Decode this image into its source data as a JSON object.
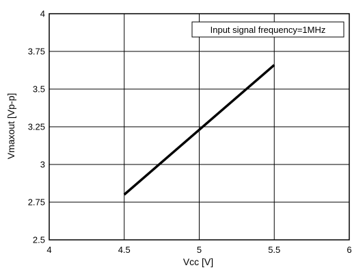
{
  "chart_data": {
    "type": "line",
    "title": "",
    "xlabel": "Vcc [V]",
    "ylabel": "Vmaxout [Vp-p]",
    "xlim": [
      4,
      6
    ],
    "ylim": [
      2.5,
      4
    ],
    "x_ticks": [
      "4",
      "4.5",
      "5",
      "5.5",
      "6"
    ],
    "y_ticks": [
      "2.5",
      "2.75",
      "3",
      "3.25",
      "3.5",
      "3.75",
      "4"
    ],
    "grid": true,
    "annotation": "Input signal frequency=1MHz",
    "series": [
      {
        "x": [
          4.5,
          5.5
        ],
        "y": [
          2.8,
          3.66
        ],
        "color": "#000000"
      }
    ]
  }
}
